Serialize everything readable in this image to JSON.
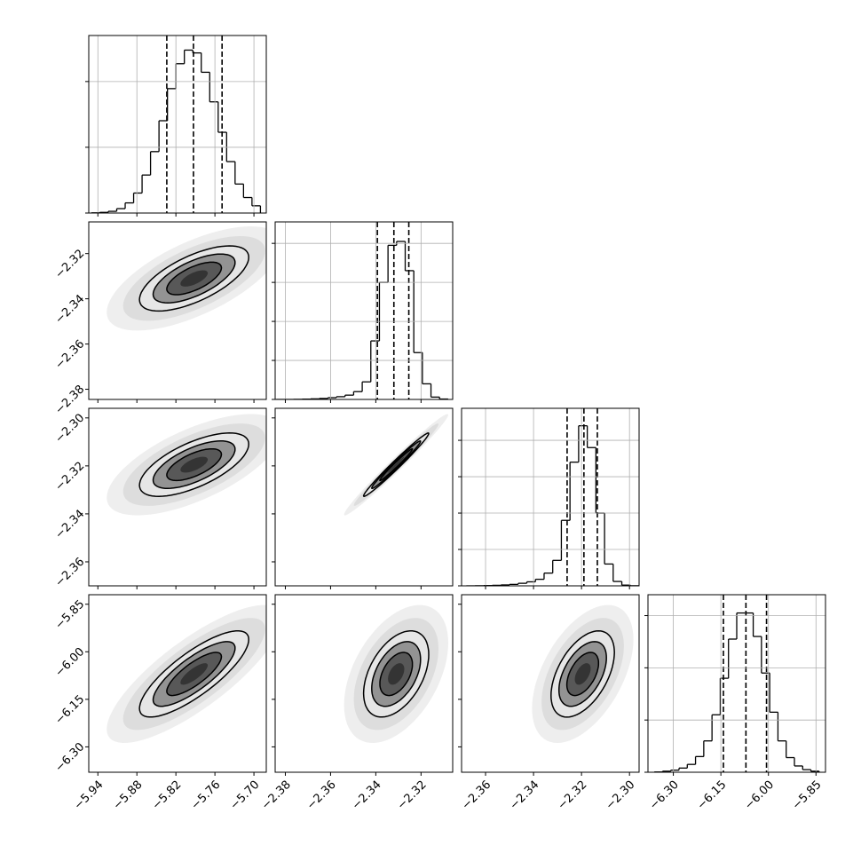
{
  "chart_data": {
    "type": "corner",
    "color": "#000000",
    "grid": true,
    "levels": [
      0.5,
      1,
      1.5,
      2
    ],
    "variables": [
      {
        "lim": [
          -5.954,
          -5.681
        ],
        "mean": -5.792,
        "sd": 0.042,
        "ticks": [
          {
            "value": -5.94,
            "label": "−5.94"
          },
          {
            "value": -5.88,
            "label": "−5.88"
          },
          {
            "value": -5.82,
            "label": "−5.82"
          },
          {
            "value": -5.76,
            "label": "−5.76"
          },
          {
            "value": -5.7,
            "label": "−5.70"
          }
        ],
        "bins": [
          -5.95,
          -5.937,
          -5.924,
          -5.911,
          -5.898,
          -5.885,
          -5.872,
          -5.859,
          -5.846,
          -5.833,
          -5.82,
          -5.807,
          -5.794,
          -5.781,
          -5.768,
          -5.755,
          -5.742,
          -5.729,
          -5.716,
          -5.703,
          -5.69
        ],
        "counts": [
          3,
          10,
          26,
          67,
          154,
          304,
          578,
          934,
          1404,
          1892,
          2271,
          2478,
          2435,
          2141,
          1691,
          1228,
          782,
          441,
          236,
          110
        ],
        "count_lim": [
          0,
          2700
        ],
        "count_ticks": [
          0,
          1000,
          2000
        ],
        "quantiles": [
          -5.834,
          -5.793,
          -5.749
        ]
      },
      {
        "lim": [
          -2.3845,
          -2.306
        ],
        "mean": -2.331,
        "sd": 0.0072,
        "ticks": [
          {
            "value": -2.38,
            "label": "−2.38"
          },
          {
            "value": -2.36,
            "label": "−2.36"
          },
          {
            "value": -2.34,
            "label": "−2.34"
          },
          {
            "value": -2.32,
            "label": "−2.32"
          }
        ],
        "bins": [
          -2.384,
          -2.3802,
          -2.3764,
          -2.3726,
          -2.3688,
          -2.365,
          -2.3612,
          -2.3574,
          -2.3536,
          -2.3498,
          -2.346,
          -2.3422,
          -2.3384,
          -2.3346,
          -2.3308,
          -2.327,
          -2.3232,
          -2.3194,
          -2.3156,
          -2.3118,
          -2.308
        ],
        "counts": [
          0,
          0,
          3,
          8,
          15,
          25,
          45,
          70,
          110,
          200,
          450,
          1500,
          3000,
          3950,
          4050,
          3300,
          1200,
          400,
          60,
          10
        ],
        "count_lim": [
          0,
          4550
        ],
        "count_ticks": [
          0,
          1000,
          2000,
          3000,
          4000
        ],
        "quantiles": [
          -2.3393,
          -2.332,
          -2.3254
        ]
      },
      {
        "lim": [
          -2.37,
          -2.296
        ],
        "mean": -2.3195,
        "sd": 0.0066,
        "ticks": [
          {
            "value": -2.36,
            "label": "−2.36"
          },
          {
            "value": -2.34,
            "label": "−2.34"
          },
          {
            "value": -2.32,
            "label": "−2.32"
          },
          {
            "value": -2.3,
            "label": "−2.30"
          }
        ],
        "bins": [
          -2.368,
          -2.3644,
          -2.3608,
          -2.3572,
          -2.3536,
          -2.35,
          -2.3464,
          -2.3428,
          -2.3392,
          -2.3356,
          -2.332,
          -2.3284,
          -2.3248,
          -2.3212,
          -2.3176,
          -2.314,
          -2.3104,
          -2.3068,
          -2.3032,
          -2.2996,
          -2.296
        ],
        "counts": [
          0,
          3,
          8,
          15,
          25,
          40,
          70,
          110,
          180,
          350,
          700,
          1800,
          3400,
          4400,
          3800,
          2000,
          600,
          120,
          20,
          3
        ],
        "count_lim": [
          0,
          4880
        ],
        "count_ticks": [
          0,
          1000,
          2000,
          3000,
          4000
        ],
        "quantiles": [
          -2.326,
          -2.319,
          -2.3134
        ]
      },
      {
        "lim": [
          -6.38,
          -5.82
        ],
        "mean": -6.07,
        "sd": 0.068,
        "ticks": [
          {
            "value": -6.3,
            "label": "−6.30"
          },
          {
            "value": -6.15,
            "label": "−6.15"
          },
          {
            "value": -6.0,
            "label": "−6.00"
          },
          {
            "value": -5.85,
            "label": "−5.85"
          }
        ],
        "bins": [
          -6.36,
          -6.334,
          -6.308,
          -6.282,
          -6.256,
          -6.23,
          -6.204,
          -6.178,
          -6.152,
          -6.126,
          -6.1,
          -6.074,
          -6.048,
          -6.022,
          -5.996,
          -5.97,
          -5.944,
          -5.918,
          -5.892,
          -5.866,
          -5.84
        ],
        "counts": [
          5,
          20,
          40,
          80,
          150,
          300,
          600,
          1100,
          1800,
          2550,
          3050,
          3050,
          2600,
          1900,
          1150,
          600,
          280,
          120,
          50,
          20
        ],
        "count_lim": [
          0,
          3400
        ],
        "count_ticks": [
          0,
          1000,
          2000,
          3000
        ],
        "quantiles": [
          -6.142,
          -6.071,
          -6.006
        ]
      }
    ],
    "pairs": [
      {
        "x": 0,
        "y": 1,
        "rho": 0.65
      },
      {
        "x": 0,
        "y": 2,
        "rho": 0.65
      },
      {
        "x": 1,
        "y": 2,
        "rho": 0.985
      },
      {
        "x": 0,
        "y": 3,
        "rho": 0.8
      },
      {
        "x": 1,
        "y": 3,
        "rho": 0.45
      },
      {
        "x": 2,
        "y": 3,
        "rho": 0.5
      }
    ]
  }
}
